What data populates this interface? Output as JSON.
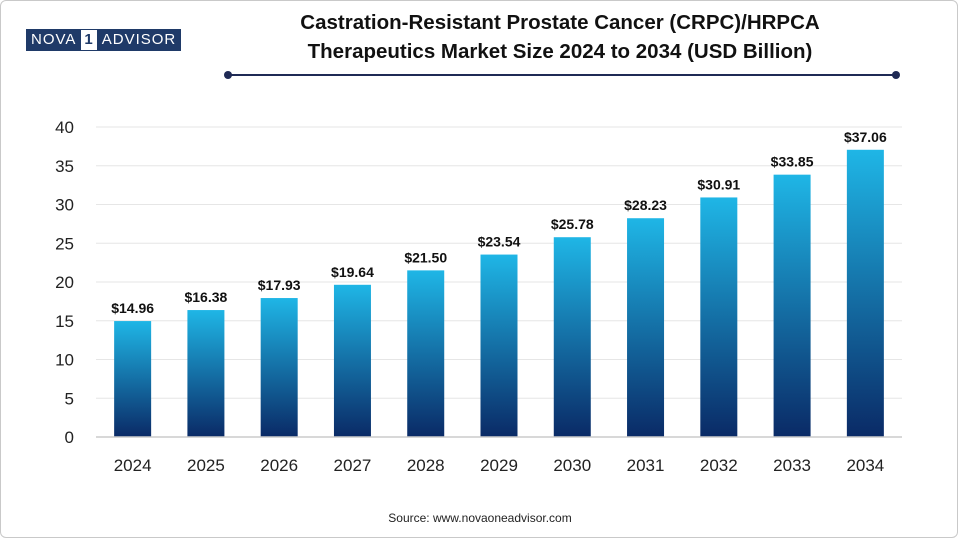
{
  "logo": {
    "left": "NOVA",
    "mid": "1",
    "right": "ADVISOR"
  },
  "header": {
    "title_line1": "Castration-Resistant Prostate Cancer (CRPC)/HRPCA",
    "title_line2": "Therapeutics Market Size 2024 to 2034 (USD Billion)"
  },
  "footer": {
    "source": "Source: www.novaoneadvisor.com"
  },
  "colors": {
    "bar_top": "#1fb6e6",
    "bar_bottom": "#0a2a66",
    "axis": "#cccccc",
    "grid": "#e6e6e6",
    "rule": "#1f2a55"
  },
  "chart_data": {
    "type": "bar",
    "title": "Castration-Resistant Prostate Cancer (CRPC)/HRPCA Therapeutics Market Size 2024 to 2034 (USD Billion)",
    "xlabel": "",
    "ylabel": "",
    "categories": [
      "2024",
      "2025",
      "2026",
      "2027",
      "2028",
      "2029",
      "2030",
      "2031",
      "2032",
      "2033",
      "2034"
    ],
    "values": [
      14.96,
      16.38,
      17.93,
      19.64,
      21.5,
      23.54,
      25.78,
      28.23,
      30.91,
      33.85,
      37.06
    ],
    "data_labels": [
      "$14.96",
      "$16.38",
      "$17.93",
      "$19.64",
      "$21.50",
      "$23.54",
      "$25.78",
      "$28.23",
      "$30.91",
      "$33.85",
      "$37.06"
    ],
    "ylim": [
      0,
      40
    ],
    "yticks": [
      "0",
      "5",
      "10",
      "15",
      "20",
      "25",
      "30",
      "35",
      "40"
    ],
    "grid": true
  }
}
